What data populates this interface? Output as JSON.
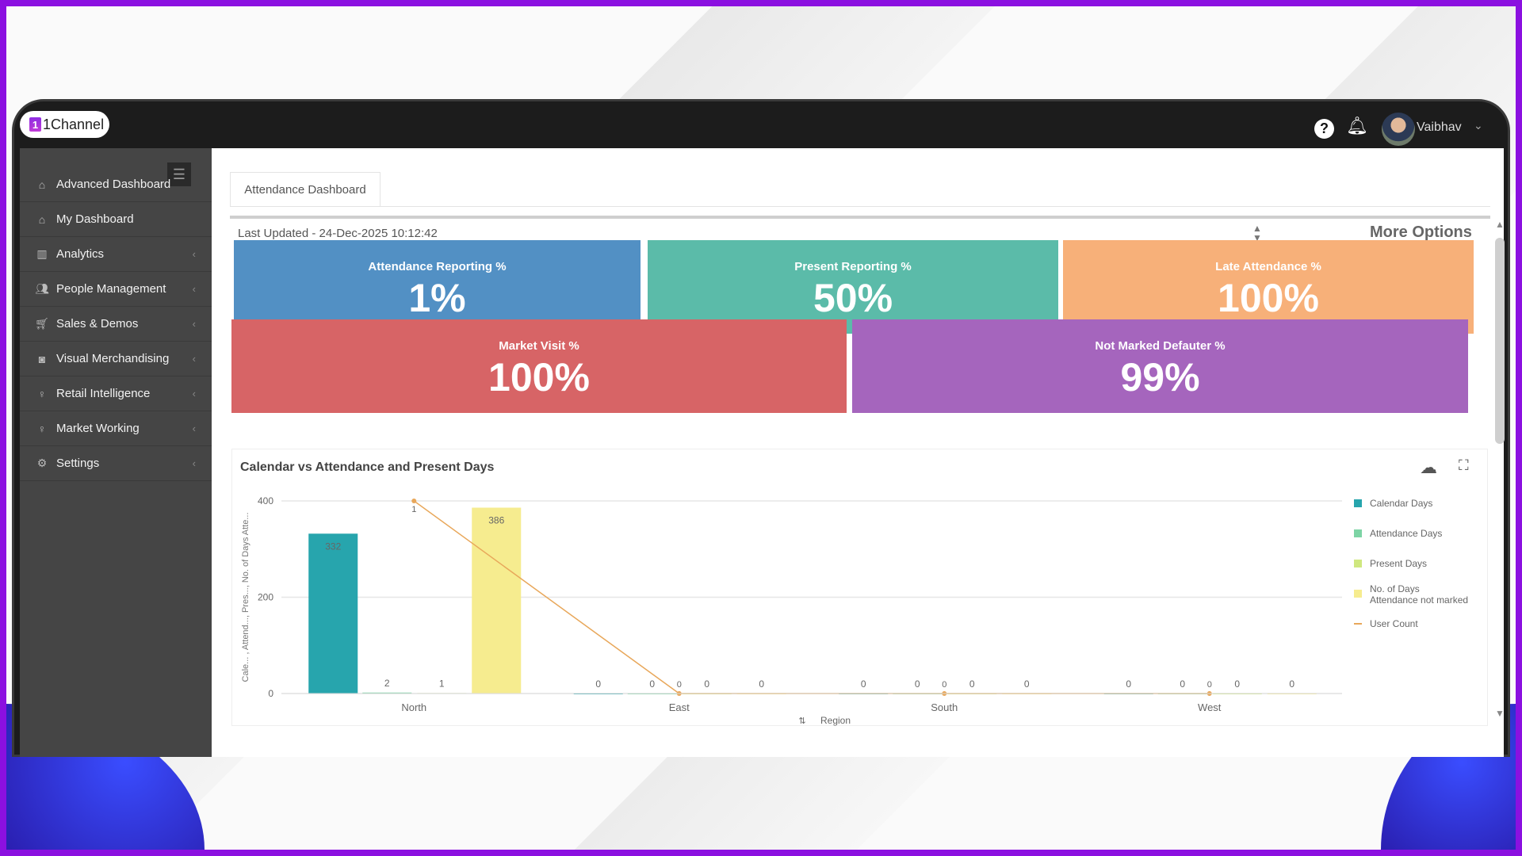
{
  "app": {
    "logo_text": "1Channel",
    "logo_mark": "1",
    "user_name": "Vaibhav"
  },
  "sidebar": {
    "items": [
      {
        "label": "Advanced Dashboard",
        "icon": "home-icon"
      },
      {
        "label": "My Dashboard",
        "icon": "home-icon"
      },
      {
        "label": "Analytics",
        "icon": "bar-chart-icon"
      },
      {
        "label": "People Management",
        "icon": "users-icon"
      },
      {
        "label": "Sales & Demos",
        "icon": "cart-icon"
      },
      {
        "label": "Visual Merchandising",
        "icon": "camera-icon"
      },
      {
        "label": "Retail Intelligence",
        "icon": "lightbulb-icon"
      },
      {
        "label": "Market Working",
        "icon": "lightbulb-icon"
      },
      {
        "label": "Settings",
        "icon": "gears-icon"
      }
    ]
  },
  "tab": {
    "label": "Attendance Dashboard"
  },
  "panel": {
    "last_updated": "Last Updated - 24-Dec-2025 10:12:42",
    "more_options": "More Options"
  },
  "tiles": [
    {
      "label": "Attendance Reporting %",
      "value": "1%",
      "color": "#5290c4"
    },
    {
      "label": "Present Reporting %",
      "value": "50%",
      "color": "#5bbba9"
    },
    {
      "label": "Late Attendance %",
      "value": "100%",
      "color": "#f7b079"
    },
    {
      "label": "Market Visit %",
      "value": "100%",
      "color": "#d76466"
    },
    {
      "label": "Not Marked Defauter %",
      "value": "99%",
      "color": "#a565bd"
    }
  ],
  "chart_data": {
    "type": "bar",
    "title": "Calendar vs Attendance and Present Days",
    "xlabel": "Region",
    "ylabel": "Cale... , Attend..., Pres..., No. of Days Atte...",
    "ylim": [
      0,
      400
    ],
    "yticks": [
      "0",
      "200",
      "400"
    ],
    "categories": [
      "North",
      "East",
      "South",
      "West"
    ],
    "series": [
      {
        "name": "Calendar Days",
        "values": [
          332,
          0,
          0,
          0
        ],
        "color": "#27a5ad"
      },
      {
        "name": "Attendance Days",
        "values": [
          2,
          0,
          0,
          0
        ],
        "color": "#7dd4a5"
      },
      {
        "name": "Present Days",
        "values": [
          1,
          0,
          0,
          0
        ],
        "color": "#cfe77f"
      },
      {
        "name": "No. of Days Attendance not marked",
        "values": [
          386,
          0,
          0,
          0
        ],
        "color": "#f6ec8f"
      }
    ],
    "line_series": {
      "name": "User Count",
      "values": [
        1,
        0,
        0,
        0
      ],
      "color": "#e8a75a",
      "ylim": [
        0,
        1
      ]
    },
    "legend": "right"
  }
}
